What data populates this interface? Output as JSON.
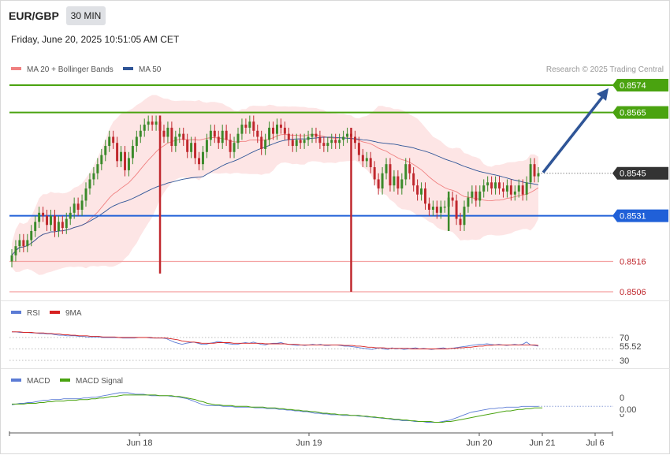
{
  "header": {
    "symbol": "EUR/GBP",
    "timeframe": "30 MIN",
    "datetime": "Friday, June 20, 2025 10:51:05 AM CET"
  },
  "main_legend": [
    {
      "label": "MA 20 + Bollinger Bands",
      "color": "#f08080"
    },
    {
      "label": "MA 50",
      "color": "#2f5597"
    }
  ],
  "copyright": "Research © 2025 Trading Central",
  "colors": {
    "green": "#4aa310",
    "blue": "#2060d8",
    "red": "#f4a0a0",
    "price_tag": "#333333",
    "arrow": "#2f5597",
    "band": "#fde0e0",
    "candle_up": "#3a8a2a",
    "candle_down": "#c0282e"
  },
  "chart_data": [
    {
      "type": "candlestick",
      "title": "",
      "y_range": [
        0.85,
        0.8578
      ],
      "x_labels": [
        "Jun 18",
        "Jun 19",
        "Jun 20",
        "Jun 21",
        "Jul 6"
      ],
      "current_price": {
        "value": 0.8545,
        "label": "0.8545"
      },
      "levels": [
        {
          "value": 0.8574,
          "label": "0.8574",
          "kind": "resistance",
          "color": "#4aa310",
          "tag": true
        },
        {
          "value": 0.8565,
          "label": "0.8565",
          "kind": "resistance",
          "color": "#4aa310",
          "tag": true
        },
        {
          "value": 0.8531,
          "label": "0.8531",
          "kind": "pivot",
          "color": "#2060d8",
          "tag": true
        },
        {
          "value": 0.8516,
          "label": "0.8516",
          "kind": "support",
          "color": "#f4a0a0",
          "tag": false
        },
        {
          "value": 0.8506,
          "label": "0.8506",
          "kind": "support",
          "color": "#f4a0a0",
          "tag": false
        }
      ],
      "arrow": {
        "from": 0.8545,
        "to": 0.8573
      },
      "closes": [
        0.8518,
        0.8521,
        0.8523,
        0.8521,
        0.8523,
        0.8526,
        0.8529,
        0.8532,
        0.8531,
        0.8528,
        0.8531,
        0.8526,
        0.8529,
        0.8527,
        0.853,
        0.8532,
        0.8535,
        0.8533,
        0.8536,
        0.854,
        0.8543,
        0.8545,
        0.8548,
        0.8551,
        0.8554,
        0.8557,
        0.8555,
        0.8549,
        0.8552,
        0.8546,
        0.855,
        0.8554,
        0.8557,
        0.8559,
        0.8561,
        0.8562,
        0.8561,
        0.8562,
        0.8559,
        0.8557,
        0.856,
        0.8554,
        0.8557,
        0.8558,
        0.8556,
        0.8552,
        0.8555,
        0.855,
        0.8548,
        0.8552,
        0.8556,
        0.8559,
        0.8557,
        0.8555,
        0.8559,
        0.8556,
        0.8552,
        0.8555,
        0.8558,
        0.8561,
        0.856,
        0.8562,
        0.8559,
        0.8557,
        0.8553,
        0.8556,
        0.856,
        0.8558,
        0.8561,
        0.856,
        0.8558,
        0.8556,
        0.8554,
        0.8556,
        0.8555,
        0.8556,
        0.8557,
        0.8558,
        0.8557,
        0.8555,
        0.8554,
        0.8555,
        0.8556,
        0.8555,
        0.8556,
        0.8557,
        0.8558,
        0.8557,
        0.8555,
        0.8551,
        0.8549,
        0.855,
        0.8547,
        0.8543,
        0.854,
        0.8545,
        0.8548,
        0.8541,
        0.8544,
        0.854,
        0.8543,
        0.8548,
        0.8545,
        0.8541,
        0.8538,
        0.854,
        0.8535,
        0.8533,
        0.8534,
        0.8532,
        0.8534,
        0.8534,
        0.8537,
        0.8536,
        0.853,
        0.8528,
        0.8534,
        0.8537,
        0.8539,
        0.8536,
        0.8539,
        0.8541,
        0.8542,
        0.854,
        0.8542,
        0.854,
        0.8539,
        0.8541,
        0.8538,
        0.8539,
        0.8541,
        0.8538,
        0.8542,
        0.8548,
        0.8544,
        0.8545
      ],
      "wicks": [
        {
          "index": 38,
          "low": 0.8512
        },
        {
          "index": 87,
          "low": 0.8506
        },
        {
          "index": 112,
          "low": 0.8526
        }
      ]
    },
    {
      "type": "line",
      "title": "",
      "series": [
        {
          "name": "RSI",
          "color": "#5b7bd5"
        },
        {
          "name": "9MA",
          "color": "#d62020"
        }
      ],
      "levels": [
        70,
        30
      ],
      "level_labels": [
        "70",
        "30"
      ],
      "last_value_label": "55.52",
      "rsi": [
        80,
        80,
        79,
        79,
        79,
        78,
        78,
        77,
        77,
        76,
        76,
        75,
        74,
        74,
        73,
        73,
        73,
        72,
        72,
        71,
        71,
        71,
        71,
        70,
        70,
        70,
        70,
        70,
        69,
        69,
        69,
        69,
        70,
        70,
        70,
        69,
        69,
        69,
        69,
        68,
        65,
        62,
        60,
        58,
        60,
        61,
        62,
        60,
        58,
        58,
        60,
        61,
        63,
        62,
        60,
        59,
        58,
        58,
        60,
        61,
        60,
        62,
        60,
        58,
        57,
        59,
        60,
        60,
        61,
        59,
        58,
        57,
        56,
        57,
        56,
        57,
        58,
        57,
        58,
        56,
        56,
        57,
        57,
        56,
        55,
        55,
        54,
        53,
        52,
        51,
        50,
        49,
        51,
        52,
        50,
        49,
        52,
        50,
        51,
        49,
        50,
        51,
        52,
        50,
        51,
        50,
        49,
        50,
        51,
        52,
        50,
        51,
        52,
        53,
        54,
        55,
        56,
        57,
        58,
        58,
        59,
        58,
        57,
        58,
        57,
        56,
        57,
        58,
        57,
        58,
        62,
        57,
        56,
        55
      ],
      "ma9": [
        80,
        80,
        80,
        79,
        79,
        79,
        78,
        78,
        78,
        77,
        77,
        76,
        76,
        75,
        75,
        74,
        74,
        73,
        73,
        73,
        72,
        72,
        72,
        71,
        71,
        71,
        71,
        70,
        70,
        70,
        70,
        70,
        70,
        70,
        70,
        70,
        69,
        69,
        69,
        69,
        68,
        67,
        66,
        64,
        63,
        62,
        62,
        61,
        60,
        60,
        60,
        60,
        61,
        61,
        61,
        61,
        60,
        60,
        60,
        60,
        60,
        60,
        60,
        60,
        59,
        59,
        59,
        59,
        59,
        59,
        58,
        58,
        58,
        57,
        57,
        57,
        57,
        57,
        57,
        57,
        57,
        57,
        57,
        57,
        56,
        56,
        56,
        55,
        55,
        54,
        53,
        53,
        52,
        52,
        52,
        51,
        51,
        51,
        51,
        51,
        51,
        50,
        50,
        50,
        50,
        50,
        50,
        50,
        50,
        50,
        50,
        51,
        51,
        52,
        52,
        53,
        53,
        54,
        55,
        55,
        56,
        56,
        57,
        57,
        57,
        57,
        57,
        57,
        57,
        57,
        57,
        57,
        57,
        56
      ]
    },
    {
      "type": "line",
      "title": "",
      "series": [
        {
          "name": "MACD",
          "color": "#5b7bd5"
        },
        {
          "name": "MACD Signal",
          "color": "#4aa310"
        }
      ],
      "level_labels": [
        "0",
        "0"
      ],
      "last_value_label": "0.00",
      "macd": [
        10,
        11,
        12,
        12,
        13,
        13,
        14,
        15,
        16,
        16,
        17,
        17,
        17,
        18,
        18,
        18,
        18,
        18,
        19,
        19,
        20,
        20,
        21,
        22,
        23,
        24,
        25,
        26,
        26,
        26,
        25,
        24,
        24,
        24,
        23,
        22,
        22,
        22,
        22,
        22,
        21,
        21,
        20,
        19,
        18,
        16,
        14,
        12,
        10,
        9,
        9,
        9,
        9,
        8,
        8,
        8,
        7,
        7,
        7,
        7,
        7,
        6,
        6,
        6,
        5,
        5,
        5,
        4,
        4,
        3,
        3,
        2,
        2,
        1,
        1,
        0,
        -1,
        -1,
        -2,
        -2,
        -3,
        -3,
        -3,
        -4,
        -4,
        -4,
        -4,
        -5,
        -5,
        -6,
        -6,
        -7,
        -7,
        -8,
        -8,
        -9,
        -10,
        -10,
        -11,
        -11,
        -11,
        -12,
        -12,
        -12,
        -13,
        -13,
        -13,
        -13,
        -12,
        -11,
        -10,
        -8,
        -6,
        -4,
        -2,
        0,
        1,
        2,
        3,
        4,
        5,
        5,
        6,
        6,
        7,
        7,
        7,
        7,
        8,
        8,
        8,
        8,
        8
      ],
      "signal": [
        11,
        11,
        11,
        11,
        12,
        12,
        12,
        13,
        13,
        14,
        14,
        15,
        15,
        15,
        16,
        16,
        16,
        17,
        17,
        17,
        18,
        18,
        19,
        19,
        20,
        21,
        21,
        22,
        23,
        23,
        23,
        23,
        23,
        23,
        23,
        23,
        23,
        22,
        22,
        22,
        22,
        21,
        21,
        20,
        19,
        18,
        17,
        15,
        14,
        12,
        11,
        10,
        10,
        9,
        9,
        9,
        8,
        8,
        8,
        8,
        7,
        7,
        7,
        7,
        6,
        6,
        6,
        5,
        5,
        4,
        4,
        3,
        3,
        2,
        2,
        1,
        1,
        0,
        -1,
        -1,
        -2,
        -2,
        -3,
        -3,
        -3,
        -4,
        -4,
        -4,
        -5,
        -5,
        -6,
        -6,
        -7,
        -7,
        -8,
        -8,
        -9,
        -9,
        -10,
        -10,
        -11,
        -11,
        -12,
        -12,
        -12,
        -12,
        -13,
        -13,
        -13,
        -12,
        -12,
        -11,
        -10,
        -9,
        -8,
        -7,
        -6,
        -5,
        -4,
        -3,
        -2,
        -1,
        0,
        1,
        2,
        2,
        3,
        4,
        4,
        5,
        5,
        6,
        6,
        6
      ]
    }
  ],
  "x_axis_labels": [
    "Jun 18",
    "Jun 19",
    "Jun 20",
    "Jun 21",
    "Jul 6"
  ]
}
